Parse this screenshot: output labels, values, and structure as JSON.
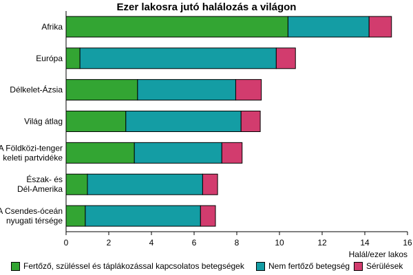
{
  "chart_data": {
    "type": "bar",
    "orientation": "horizontal",
    "stacked": true,
    "title": "Ezer lakosra jutó halálozás a világon",
    "xlabel": "Halál/ezer lakos",
    "ylabel": "",
    "xlim": [
      0,
      16
    ],
    "xticks": [
      "0",
      "2",
      "4",
      "6",
      "8",
      "10",
      "12",
      "14",
      "16"
    ],
    "grid": false,
    "legend_position": "bottom",
    "categories": [
      [
        "Afrika"
      ],
      [
        "Európa"
      ],
      [
        "Délkelet-Ázsia"
      ],
      [
        "Világ átlag"
      ],
      [
        "A Földközi-tenger",
        "keleti partvidéke"
      ],
      [
        "Észak- és",
        "Dél-Amerika"
      ],
      [
        "A Csendes-óceán",
        "nyugati térsége"
      ]
    ],
    "series": [
      {
        "name": "Fertőző, szüléssel és táplákozással kapcsolatos betegségek",
        "color": "#33a533",
        "values": [
          10.4,
          0.65,
          3.35,
          2.8,
          3.2,
          1.0,
          0.9
        ]
      },
      {
        "name": "Nem fertőző betegség",
        "color": "#149da4",
        "values": [
          3.8,
          9.2,
          4.6,
          5.4,
          4.1,
          5.4,
          5.4
        ]
      },
      {
        "name": "Sérülések",
        "color": "#d23c6e",
        "values": [
          1.05,
          0.9,
          1.2,
          0.9,
          0.95,
          0.7,
          0.7
        ]
      }
    ]
  }
}
